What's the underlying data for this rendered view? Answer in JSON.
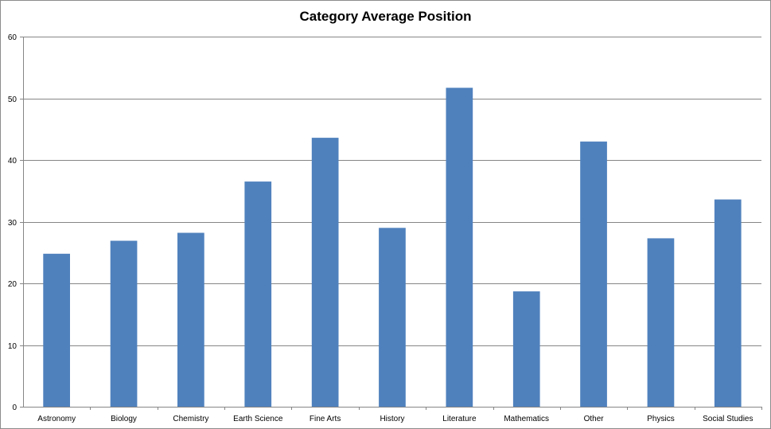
{
  "chart_data": {
    "type": "bar",
    "title": "Category Average Position",
    "xlabel": "",
    "ylabel": "",
    "categories": [
      "Astronomy",
      "Biology",
      "Chemistry",
      "Earth Science",
      "Fine Arts",
      "History",
      "Literature",
      "Mathematics",
      "Other",
      "Physics",
      "Social Studies"
    ],
    "values": [
      24.8,
      26.9,
      28.2,
      36.5,
      43.6,
      29.0,
      51.7,
      18.7,
      43.0,
      27.3,
      33.6
    ],
    "ylim": [
      0,
      60
    ],
    "yticks": [
      0,
      10,
      20,
      30,
      40,
      50,
      60
    ],
    "grid": true,
    "legend": "none",
    "colors": {
      "bar": "#4f81bd",
      "grid": "#868686",
      "axis": "#868686"
    }
  }
}
